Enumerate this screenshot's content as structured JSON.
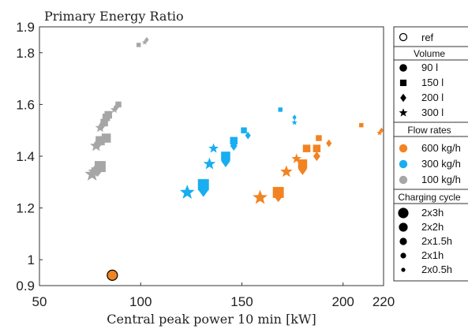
{
  "chart_data": {
    "type": "scatter",
    "title": "Primary Energy Ratio",
    "xlabel": "Central peak power 10 min [kW]",
    "ylabel": "",
    "xlim": [
      50,
      220
    ],
    "ylim": [
      0.9,
      1.9
    ],
    "x_ticks": [
      50,
      100,
      150,
      200,
      220
    ],
    "y_ticks": [
      0.9,
      1,
      1.2,
      1.4,
      1.6,
      1.8,
      1.9
    ],
    "grid": false,
    "legend_position": "right, outside",
    "colors": {
      "600": "#f28322",
      "300": "#18aef0",
      "100": "#a6a6a6"
    },
    "ref_point": {
      "x": 86,
      "y": 0.94,
      "color": "#f28322"
    },
    "series": [
      {
        "flow": "100 kg/h",
        "color": "#a6a6a6",
        "points": [
          {
            "x": 76,
            "y": 1.33,
            "shape": "star",
            "size": 5
          },
          {
            "x": 77,
            "y": 1.34,
            "shape": "star",
            "size": 4
          },
          {
            "x": 78,
            "y": 1.35,
            "shape": "star",
            "size": 3
          },
          {
            "x": 79,
            "y": 1.35,
            "shape": "diamond",
            "size": 5
          },
          {
            "x": 80,
            "y": 1.36,
            "shape": "square",
            "size": 5
          },
          {
            "x": 78,
            "y": 1.44,
            "shape": "star",
            "size": 4
          },
          {
            "x": 79,
            "y": 1.45,
            "shape": "diamond",
            "size": 4
          },
          {
            "x": 80,
            "y": 1.46,
            "shape": "square",
            "size": 4
          },
          {
            "x": 81,
            "y": 1.46,
            "shape": "diamond",
            "size": 3
          },
          {
            "x": 83,
            "y": 1.47,
            "shape": "square",
            "size": 4
          },
          {
            "x": 80,
            "y": 1.51,
            "shape": "star",
            "size": 3
          },
          {
            "x": 81,
            "y": 1.52,
            "shape": "diamond",
            "size": 3
          },
          {
            "x": 82,
            "y": 1.53,
            "shape": "square",
            "size": 3
          },
          {
            "x": 83,
            "y": 1.55,
            "shape": "square",
            "size": 3
          },
          {
            "x": 84,
            "y": 1.56,
            "shape": "square",
            "size": 3
          },
          {
            "x": 87,
            "y": 1.58,
            "shape": "star",
            "size": 2
          },
          {
            "x": 88,
            "y": 1.59,
            "shape": "diamond",
            "size": 2
          },
          {
            "x": 89,
            "y": 1.6,
            "shape": "square",
            "size": 2
          },
          {
            "x": 99,
            "y": 1.83,
            "shape": "square",
            "size": 1
          },
          {
            "x": 102,
            "y": 1.84,
            "shape": "star",
            "size": 1
          },
          {
            "x": 103,
            "y": 1.85,
            "shape": "diamond",
            "size": 1
          }
        ]
      },
      {
        "flow": "300 kg/h",
        "color": "#18aef0",
        "points": [
          {
            "x": 123,
            "y": 1.26,
            "shape": "star",
            "size": 5
          },
          {
            "x": 131,
            "y": 1.27,
            "shape": "diamond",
            "size": 5
          },
          {
            "x": 131,
            "y": 1.29,
            "shape": "square",
            "size": 5
          },
          {
            "x": 134,
            "y": 1.37,
            "shape": "star",
            "size": 4
          },
          {
            "x": 136,
            "y": 1.43,
            "shape": "star",
            "size": 3
          },
          {
            "x": 142,
            "y": 1.38,
            "shape": "diamond",
            "size": 4
          },
          {
            "x": 142,
            "y": 1.4,
            "shape": "square",
            "size": 4
          },
          {
            "x": 146,
            "y": 1.44,
            "shape": "diamond",
            "size": 3
          },
          {
            "x": 146,
            "y": 1.46,
            "shape": "square",
            "size": 3
          },
          {
            "x": 153,
            "y": 1.48,
            "shape": "diamond",
            "size": 2
          },
          {
            "x": 151,
            "y": 1.5,
            "shape": "square",
            "size": 2
          },
          {
            "x": 169,
            "y": 1.58,
            "shape": "square",
            "size": 1
          },
          {
            "x": 176,
            "y": 1.53,
            "shape": "star",
            "size": 1
          },
          {
            "x": 176,
            "y": 1.55,
            "shape": "diamond",
            "size": 1
          }
        ]
      },
      {
        "flow": "600 kg/h",
        "color": "#f28322",
        "points": [
          {
            "x": 159,
            "y": 1.24,
            "shape": "star",
            "size": 5
          },
          {
            "x": 168,
            "y": 1.25,
            "shape": "diamond",
            "size": 5
          },
          {
            "x": 168,
            "y": 1.26,
            "shape": "square",
            "size": 5
          },
          {
            "x": 172,
            "y": 1.34,
            "shape": "star",
            "size": 4
          },
          {
            "x": 177,
            "y": 1.39,
            "shape": "star",
            "size": 3
          },
          {
            "x": 180,
            "y": 1.35,
            "shape": "diamond",
            "size": 4
          },
          {
            "x": 180,
            "y": 1.37,
            "shape": "square",
            "size": 4
          },
          {
            "x": 187,
            "y": 1.4,
            "shape": "diamond",
            "size": 3
          },
          {
            "x": 182,
            "y": 1.43,
            "shape": "square",
            "size": 3
          },
          {
            "x": 187,
            "y": 1.43,
            "shape": "square",
            "size": 3
          },
          {
            "x": 188,
            "y": 1.47,
            "shape": "square",
            "size": 2
          },
          {
            "x": 193,
            "y": 1.45,
            "shape": "diamond",
            "size": 2
          },
          {
            "x": 209,
            "y": 1.52,
            "shape": "square",
            "size": 1
          },
          {
            "x": 218,
            "y": 1.49,
            "shape": "star",
            "size": 1
          },
          {
            "x": 219,
            "y": 1.5,
            "shape": "diamond",
            "size": 1
          }
        ]
      }
    ]
  },
  "legend": {
    "ref": "ref",
    "volume_header": "Volume",
    "volume_items": [
      {
        "label": "90 l",
        "icon": "circle-icon"
      },
      {
        "label": "150 l",
        "icon": "square-icon"
      },
      {
        "label": "200 l",
        "icon": "diamond-icon"
      },
      {
        "label": "300 l",
        "icon": "star-icon"
      }
    ],
    "flow_header": "Flow rates",
    "flow_items": [
      {
        "label": "600 kg/h",
        "color": "#f28322"
      },
      {
        "label": "300 kg/h",
        "color": "#18aef0"
      },
      {
        "label": "100 kg/h",
        "color": "#a6a6a6"
      }
    ],
    "cycle_header": "Charging cycle",
    "cycle_items": [
      {
        "label": "2x3h"
      },
      {
        "label": "2x2h"
      },
      {
        "label": "2x1.5h"
      },
      {
        "label": "2x1h"
      },
      {
        "label": "2x0.5h"
      }
    ]
  }
}
